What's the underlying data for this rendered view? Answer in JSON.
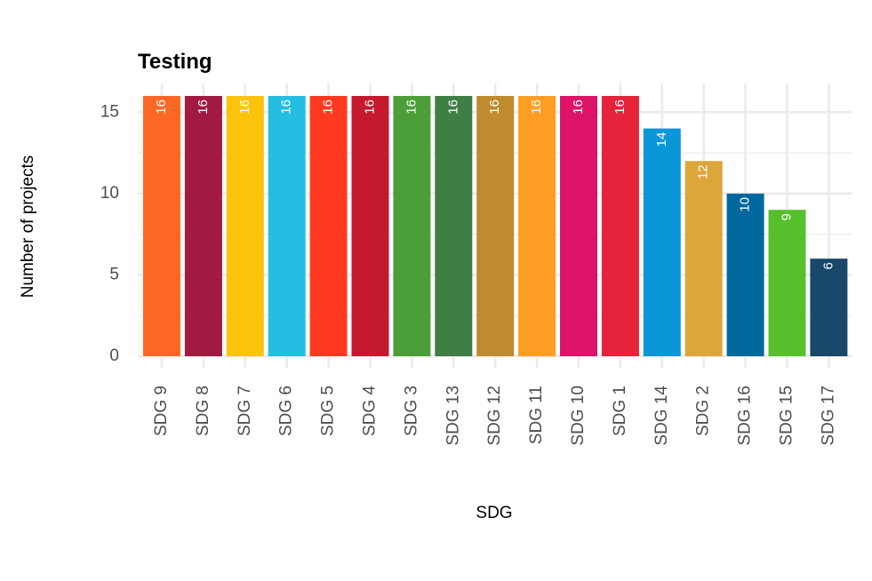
{
  "chart_data": {
    "type": "bar",
    "title": "Testing",
    "xlabel": "SDG",
    "ylabel": "Number of projects",
    "categories": [
      "SDG 9",
      "SDG 8",
      "SDG 7",
      "SDG 6",
      "SDG 5",
      "SDG 4",
      "SDG 3",
      "SDG 13",
      "SDG 12",
      "SDG 11",
      "SDG 10",
      "SDG 1",
      "SDG 14",
      "SDG 2",
      "SDG 16",
      "SDG 15",
      "SDG 17"
    ],
    "values": [
      16,
      16,
      16,
      16,
      16,
      16,
      16,
      16,
      16,
      16,
      16,
      16,
      14,
      12,
      10,
      9,
      6
    ],
    "colors": [
      "#FD6925",
      "#A21942",
      "#FCC30B",
      "#26BDE2",
      "#FF3A21",
      "#C5192D",
      "#4C9F38",
      "#3F7E44",
      "#BF8B2E",
      "#FD9D24",
      "#DD1367",
      "#E5243B",
      "#0A97D9",
      "#DDA63A",
      "#00689D",
      "#56C02B",
      "#19486A"
    ],
    "ylim": [
      0,
      16
    ],
    "yticks": [
      0,
      5,
      10,
      15
    ],
    "grid": true,
    "data_labels": true
  }
}
